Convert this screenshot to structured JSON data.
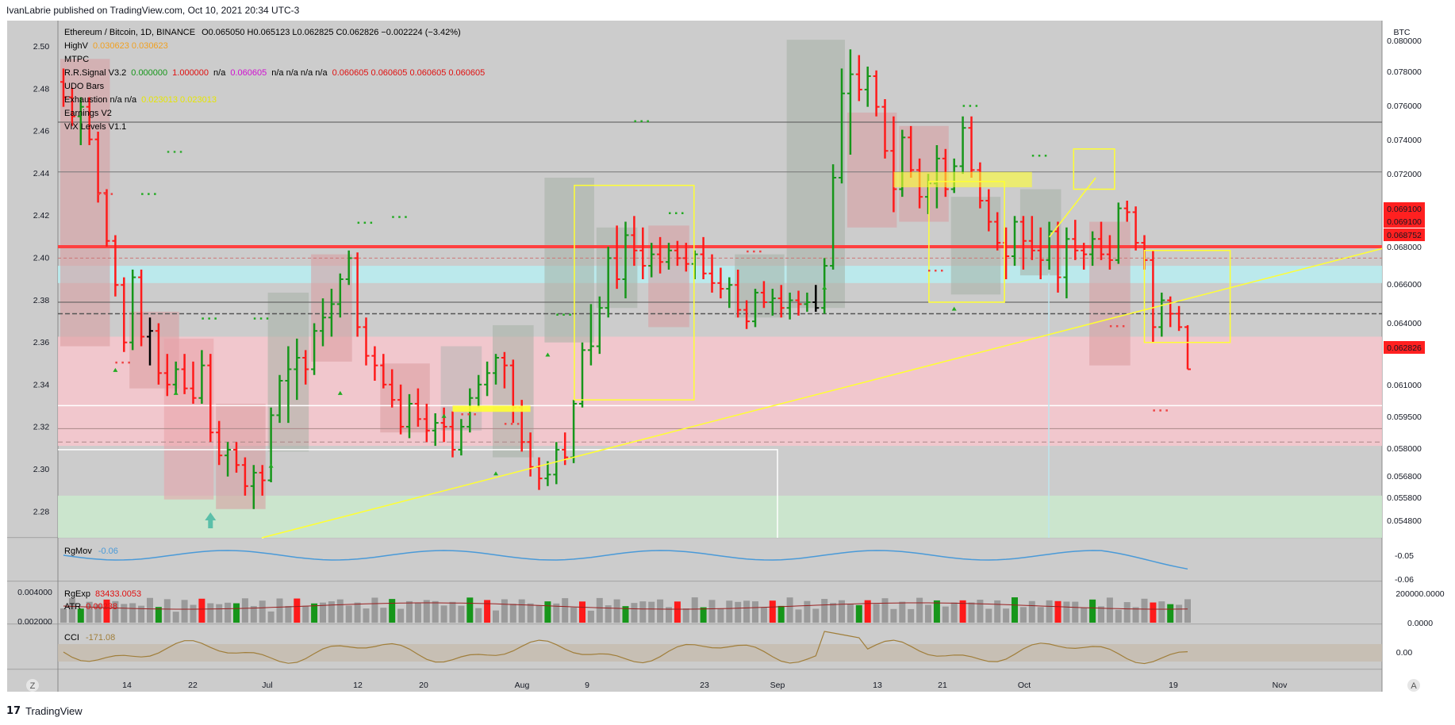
{
  "header": {
    "publisher": "IvanLabrie published on TradingView.com, Oct 10, 2021 20:34 UTC-3"
  },
  "footer": {
    "brand": "TradingView",
    "logo_text": "17"
  },
  "colors": {
    "bg": "#cccccc",
    "up": "#16961a",
    "down": "#ff1a1a",
    "neutral": "#000000",
    "yellow": "#ffff33",
    "pink_zone": "#f7c6cc",
    "cyan_zone": "#b9ecf0",
    "green_zone": "#cbe8cd",
    "price_tag": "#ff2020",
    "rgmov": "#4a9ad8",
    "cci": "#a07e3a",
    "vol_gray": "#9a9a9a"
  },
  "legend": {
    "symbol": "Ethereum / Bitcoin, 1D, BINANCE",
    "ohlc": "O0.065050  H0.065123  L0.062825  C0.062826  −0.002224 (−3.42%)",
    "highv_label": "HighV",
    "highv_values": "0.030623  0.030623",
    "mtpc": "MTPC",
    "rr_label": "R.R.Signal V3.2",
    "rr_v1": "0.000000",
    "rr_v2": "1.000000",
    "rr_na1": "n/a",
    "rr_v3": "0.060605",
    "rr_na2": "n/a  n/a  n/a  n/a",
    "rr_v4": "0.060605  0.060605  0.060605  0.060605",
    "udo": "UDO Bars",
    "exh_label": "Exhaustion  n/a  n/a",
    "exh_values": "0.023013  0.023013",
    "earnings": "Earnings V2",
    "vix": "VIX Levels V1.1"
  },
  "price_axis": {
    "currency": "BTC",
    "labels": [
      "0.080000",
      "0.078000",
      "0.076000",
      "0.074000",
      "0.072000",
      "0.070000",
      "0.068000",
      "0.066000",
      "0.064000",
      "0.061000",
      "0.059500",
      "0.058000",
      "0.056800",
      "0.055800",
      "0.054800"
    ],
    "tags": [
      {
        "text": "0.069100",
        "y": 0.0693
      },
      {
        "text": "0.069100",
        "y": 0.06895
      },
      {
        "text": "0.068752",
        "y": 0.0686
      },
      {
        "text": "0.062826",
        "y": 0.062826
      }
    ]
  },
  "left_axis": {
    "labels": [
      "2.50",
      "2.48",
      "2.46",
      "2.44",
      "2.42",
      "2.40",
      "2.38",
      "2.36",
      "2.34",
      "2.32",
      "2.30",
      "2.28"
    ]
  },
  "time_axis": {
    "labels": [
      "14",
      "22",
      "Jul",
      "12",
      "20",
      "Aug",
      "9",
      "23",
      "Sep",
      "13",
      "21",
      "Oct",
      "19",
      "Nov"
    ]
  },
  "pane_rgmov": {
    "label": "RgMov",
    "value": "-0.06",
    "scale": [
      "-0.05",
      "-0.06"
    ]
  },
  "pane_vol": {
    "label1": "RgExp",
    "value1": "83433.0053",
    "label2": "ATR",
    "value2": "0.00238",
    "left_scale": [
      "0.004000",
      "0.002000"
    ],
    "right_scale": [
      "200000.0000",
      "0.0000"
    ]
  },
  "pane_cci": {
    "label": "CCI",
    "value": "-171.08",
    "scale": [
      "0.00"
    ]
  },
  "buttons": {
    "left": "Z",
    "right": "A"
  },
  "chart_data": {
    "type": "ohlc",
    "title": "Ethereum / Bitcoin, 1D, BINANCE",
    "ylim": [
      0.054,
      0.081
    ],
    "x_dates": [
      "2021-06-08 … 2021-10-10"
    ],
    "bars": [
      [
        0.0778,
        0.0785,
        0.0765,
        0.077
      ],
      [
        0.077,
        0.0775,
        0.0755,
        0.076
      ],
      [
        0.076,
        0.077,
        0.0745,
        0.0765
      ],
      [
        0.0765,
        0.077,
        0.0745,
        0.0748
      ],
      [
        0.0748,
        0.0752,
        0.0715,
        0.072
      ],
      [
        0.072,
        0.0722,
        0.0692,
        0.0695
      ],
      [
        0.0695,
        0.0698,
        0.0666,
        0.0672
      ],
      [
        0.0672,
        0.0676,
        0.0637,
        0.0642
      ],
      [
        0.0642,
        0.068,
        0.0638,
        0.0676
      ],
      [
        0.0676,
        0.068,
        0.064,
        0.0645
      ],
      [
        0.0645,
        0.0655,
        0.063,
        0.0648
      ],
      [
        0.0648,
        0.0652,
        0.062,
        0.0626
      ],
      [
        0.0626,
        0.0636,
        0.0614,
        0.062
      ],
      [
        0.062,
        0.0632,
        0.0615,
        0.0628
      ],
      [
        0.0628,
        0.0636,
        0.0615,
        0.0618
      ],
      [
        0.0618,
        0.0632,
        0.061,
        0.0613
      ],
      [
        0.0613,
        0.0638,
        0.061,
        0.063
      ],
      [
        0.063,
        0.0636,
        0.059,
        0.0595
      ],
      [
        0.0595,
        0.0601,
        0.0578,
        0.0583
      ],
      [
        0.0583,
        0.059,
        0.0572,
        0.0586
      ],
      [
        0.0586,
        0.059,
        0.0574,
        0.0578
      ],
      [
        0.0578,
        0.0582,
        0.0562,
        0.0567
      ],
      [
        0.0567,
        0.0578,
        0.0555,
        0.0574
      ],
      [
        0.0574,
        0.0578,
        0.0562,
        0.057
      ],
      [
        0.057,
        0.0608,
        0.0569,
        0.0604
      ],
      [
        0.0604,
        0.0625,
        0.06,
        0.0622
      ],
      [
        0.0622,
        0.064,
        0.06,
        0.0628
      ],
      [
        0.0628,
        0.0644,
        0.0612,
        0.0634
      ],
      [
        0.0634,
        0.0638,
        0.062,
        0.0628
      ],
      [
        0.0628,
        0.0652,
        0.0625,
        0.0648
      ],
      [
        0.0648,
        0.0665,
        0.064,
        0.0655
      ],
      [
        0.0655,
        0.067,
        0.0645,
        0.0662
      ],
      [
        0.0662,
        0.0678,
        0.0655,
        0.0675
      ],
      [
        0.0675,
        0.069,
        0.0672,
        0.0686
      ],
      [
        0.0686,
        0.0689,
        0.0645,
        0.065
      ],
      [
        0.065,
        0.0655,
        0.063,
        0.0635
      ],
      [
        0.0635,
        0.064,
        0.0622,
        0.063
      ],
      [
        0.063,
        0.0636,
        0.0618,
        0.062
      ],
      [
        0.062,
        0.0628,
        0.0608,
        0.0612
      ],
      [
        0.0612,
        0.062,
        0.0594,
        0.0598
      ],
      [
        0.0598,
        0.0615,
        0.0592,
        0.061
      ],
      [
        0.061,
        0.0618,
        0.0598,
        0.0602
      ],
      [
        0.0602,
        0.061,
        0.059,
        0.0596
      ],
      [
        0.0596,
        0.0605,
        0.0588,
        0.06
      ],
      [
        0.06,
        0.0608,
        0.059,
        0.0598
      ],
      [
        0.0598,
        0.0606,
        0.0582,
        0.0586
      ],
      [
        0.0586,
        0.0602,
        0.0583,
        0.0598
      ],
      [
        0.0598,
        0.0618,
        0.0595,
        0.0613
      ],
      [
        0.0613,
        0.0625,
        0.0608,
        0.062
      ],
      [
        0.062,
        0.0632,
        0.0614,
        0.0626
      ],
      [
        0.0626,
        0.0636,
        0.062,
        0.0634
      ],
      [
        0.0634,
        0.0637,
        0.0618,
        0.063
      ],
      [
        0.063,
        0.0633,
        0.06,
        0.0608
      ],
      [
        0.0608,
        0.0612,
        0.0585,
        0.059
      ],
      [
        0.059,
        0.0595,
        0.0572,
        0.0577
      ],
      [
        0.0577,
        0.0582,
        0.0565,
        0.0571
      ],
      [
        0.0571,
        0.058,
        0.0567,
        0.0573
      ],
      [
        0.0573,
        0.059,
        0.0568,
        0.0586
      ],
      [
        0.0586,
        0.0595,
        0.0578,
        0.0582
      ],
      [
        0.0582,
        0.0612,
        0.0579,
        0.061
      ],
      [
        0.061,
        0.0642,
        0.0608,
        0.0638
      ],
      [
        0.0638,
        0.0662,
        0.063,
        0.064
      ],
      [
        0.064,
        0.0666,
        0.0636,
        0.066
      ],
      [
        0.066,
        0.0692,
        0.0655,
        0.0686
      ],
      [
        0.0686,
        0.0703,
        0.067,
        0.0675
      ],
      [
        0.0675,
        0.0705,
        0.0665,
        0.0698
      ],
      [
        0.0698,
        0.0708,
        0.0682,
        0.069
      ],
      [
        0.069,
        0.0702,
        0.0675,
        0.0682
      ],
      [
        0.0682,
        0.0694,
        0.0676,
        0.0688
      ],
      [
        0.0688,
        0.0697,
        0.0678,
        0.0684
      ],
      [
        0.0684,
        0.0694,
        0.068,
        0.069
      ],
      [
        0.069,
        0.0695,
        0.0682,
        0.0686
      ],
      [
        0.0686,
        0.0694,
        0.0679,
        0.0683
      ],
      [
        0.0683,
        0.069,
        0.0675,
        0.0688
      ],
      [
        0.0688,
        0.0697,
        0.0675,
        0.0678
      ],
      [
        0.0678,
        0.0688,
        0.0668,
        0.0673
      ],
      [
        0.0673,
        0.0681,
        0.0665,
        0.067
      ],
      [
        0.067,
        0.0676,
        0.066,
        0.0672
      ],
      [
        0.0672,
        0.068,
        0.0655,
        0.0659
      ],
      [
        0.0659,
        0.0664,
        0.0649,
        0.0653
      ],
      [
        0.0653,
        0.067,
        0.065,
        0.0668
      ],
      [
        0.0668,
        0.0674,
        0.066,
        0.0663
      ],
      [
        0.0663,
        0.067,
        0.0656,
        0.0665
      ],
      [
        0.0665,
        0.0672,
        0.0655,
        0.066
      ],
      [
        0.066,
        0.0668,
        0.0654,
        0.0664
      ],
      [
        0.0664,
        0.0669,
        0.0656,
        0.0662
      ],
      [
        0.0662,
        0.0668,
        0.0658,
        0.0663
      ],
      [
        0.0663,
        0.0672,
        0.0658,
        0.066
      ],
      [
        0.066,
        0.0686,
        0.0657,
        0.0682
      ],
      [
        0.0682,
        0.0735,
        0.068,
        0.0728
      ],
      [
        0.0728,
        0.0785,
        0.0725,
        0.0772
      ],
      [
        0.0772,
        0.0795,
        0.074,
        0.0782
      ],
      [
        0.0782,
        0.0792,
        0.0768,
        0.0774
      ],
      [
        0.0774,
        0.0786,
        0.0765,
        0.0781
      ],
      [
        0.0781,
        0.0784,
        0.076,
        0.0765
      ],
      [
        0.0765,
        0.0769,
        0.0738,
        0.0742
      ],
      [
        0.0742,
        0.076,
        0.071,
        0.0722
      ],
      [
        0.0722,
        0.0753,
        0.0718,
        0.0749
      ],
      [
        0.0749,
        0.0755,
        0.0728,
        0.0732
      ],
      [
        0.0732,
        0.0738,
        0.0712,
        0.0718
      ],
      [
        0.0718,
        0.073,
        0.0709,
        0.0725
      ],
      [
        0.0725,
        0.0745,
        0.0712,
        0.0738
      ],
      [
        0.0738,
        0.0743,
        0.0718,
        0.0722
      ],
      [
        0.0722,
        0.0738,
        0.072,
        0.0734
      ],
      [
        0.0734,
        0.076,
        0.073,
        0.0754
      ],
      [
        0.0754,
        0.076,
        0.0728,
        0.0732
      ],
      [
        0.0732,
        0.0736,
        0.0712,
        0.0716
      ],
      [
        0.0716,
        0.0722,
        0.07,
        0.0705
      ],
      [
        0.0705,
        0.071,
        0.069,
        0.0694
      ],
      [
        0.0694,
        0.0702,
        0.0675,
        0.0687
      ],
      [
        0.0687,
        0.0708,
        0.0682,
        0.0705
      ],
      [
        0.0705,
        0.0708,
        0.068,
        0.0695
      ],
      [
        0.0695,
        0.0708,
        0.0685,
        0.069
      ],
      [
        0.069,
        0.0702,
        0.0675,
        0.0685
      ],
      [
        0.0685,
        0.0705,
        0.068,
        0.07
      ],
      [
        0.07,
        0.0705,
        0.0668,
        0.0676
      ],
      [
        0.0676,
        0.0702,
        0.0665,
        0.0696
      ],
      [
        0.0696,
        0.0706,
        0.0685,
        0.069
      ],
      [
        0.069,
        0.0694,
        0.068,
        0.0688
      ],
      [
        0.0688,
        0.07,
        0.0682,
        0.0696
      ],
      [
        0.0696,
        0.0705,
        0.0685,
        0.0688
      ],
      [
        0.0688,
        0.0698,
        0.068,
        0.0685
      ],
      [
        0.0685,
        0.0715,
        0.0683,
        0.0712
      ],
      [
        0.0712,
        0.0716,
        0.0705,
        0.071
      ],
      [
        0.071,
        0.0713,
        0.069,
        0.0694
      ],
      [
        0.0694,
        0.0698,
        0.068,
        0.0685
      ],
      [
        0.0685,
        0.069,
        0.0642,
        0.065
      ],
      [
        0.065,
        0.0668,
        0.0645,
        0.0664
      ],
      [
        0.0664,
        0.0666,
        0.065,
        0.0657
      ],
      [
        0.0657,
        0.0661,
        0.0648,
        0.065
      ],
      [
        0.065,
        0.0651,
        0.0628,
        0.0628
      ]
    ],
    "levels": [
      0.0756,
      0.0731,
      0.0692,
      0.0677,
      0.0662,
      0.0656,
      0.061,
      0.0596,
      0.0587
    ],
    "volume_pane_ylim": [
      0,
      250000
    ]
  }
}
